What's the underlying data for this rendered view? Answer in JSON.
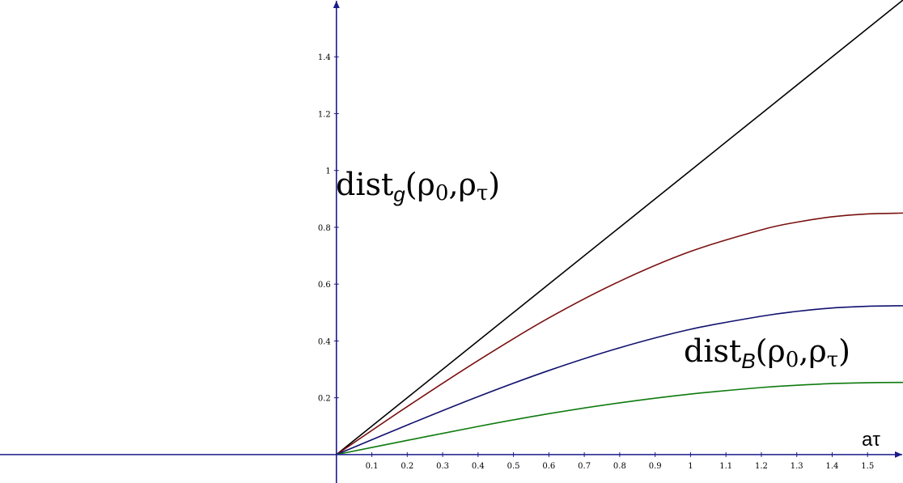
{
  "chart_data": {
    "type": "line",
    "xlabel": "aτ",
    "ylabel": "",
    "xlim": [
      -0.95,
      1.6
    ],
    "ylim": [
      -0.1,
      1.6
    ],
    "x_ticks": [
      0.1,
      0.2,
      0.3,
      0.4,
      0.5,
      0.6,
      0.7,
      0.8,
      0.9,
      1,
      1.1,
      1.2,
      1.3,
      1.4,
      1.5
    ],
    "x_tick_labels": [
      "0.1",
      "0.2",
      "0.3",
      "0.4",
      "0.5",
      "0.6",
      "0.7",
      "0.8",
      "0.9",
      "1",
      "1.1",
      "1.2",
      "1.3",
      "1.4",
      "1.5"
    ],
    "y_ticks": [
      0.2,
      0.4,
      0.6,
      0.8,
      1,
      1.2,
      1.4
    ],
    "y_tick_labels": [
      "0.2",
      "0.4",
      "0.6",
      "0.8",
      "1",
      "1.2",
      "1.4"
    ],
    "axis_color": "#1a1a8c",
    "grid": false,
    "series": [
      {
        "color": "#000000",
        "x": [
          0,
          0.2,
          0.4,
          0.6,
          0.8,
          1.0,
          1.2,
          1.4,
          1.6
        ],
        "y": [
          0,
          0.2,
          0.4,
          0.6,
          0.8,
          1.0,
          1.2,
          1.4,
          1.6
        ]
      },
      {
        "color": "#7a1010",
        "x": [
          0,
          0.2,
          0.4,
          0.6,
          0.8,
          1.0,
          1.2,
          1.3,
          1.4,
          1.5,
          1.6
        ],
        "y": [
          0,
          0.169,
          0.331,
          0.481,
          0.61,
          0.715,
          0.791,
          0.818,
          0.837,
          0.847,
          0.85
        ]
      },
      {
        "color": "#10106e",
        "x": [
          0,
          0.2,
          0.4,
          0.6,
          0.8,
          1.0,
          1.2,
          1.3,
          1.4,
          1.5,
          1.6
        ],
        "y": [
          0,
          0.104,
          0.204,
          0.296,
          0.376,
          0.441,
          0.487,
          0.504,
          0.516,
          0.522,
          0.524
        ]
      },
      {
        "color": "#0d7a0d",
        "x": [
          0,
          0.2,
          0.4,
          0.6,
          0.8,
          1.0,
          1.2,
          1.3,
          1.4,
          1.5,
          1.6
        ],
        "y": [
          0,
          0.05,
          0.099,
          0.144,
          0.182,
          0.213,
          0.236,
          0.244,
          0.25,
          0.253,
          0.254
        ]
      }
    ],
    "annotations": [
      {
        "base": "dist",
        "sub": "g",
        "args": "(ρ",
        "arg0": "0",
        "sep": ",ρ",
        "arg1": "τ",
        "close": ")"
      },
      {
        "base": "dist",
        "sub": "B",
        "args": "(ρ",
        "arg0": "0",
        "sep": ",ρ",
        "arg1": "τ",
        "close": ")"
      }
    ]
  }
}
